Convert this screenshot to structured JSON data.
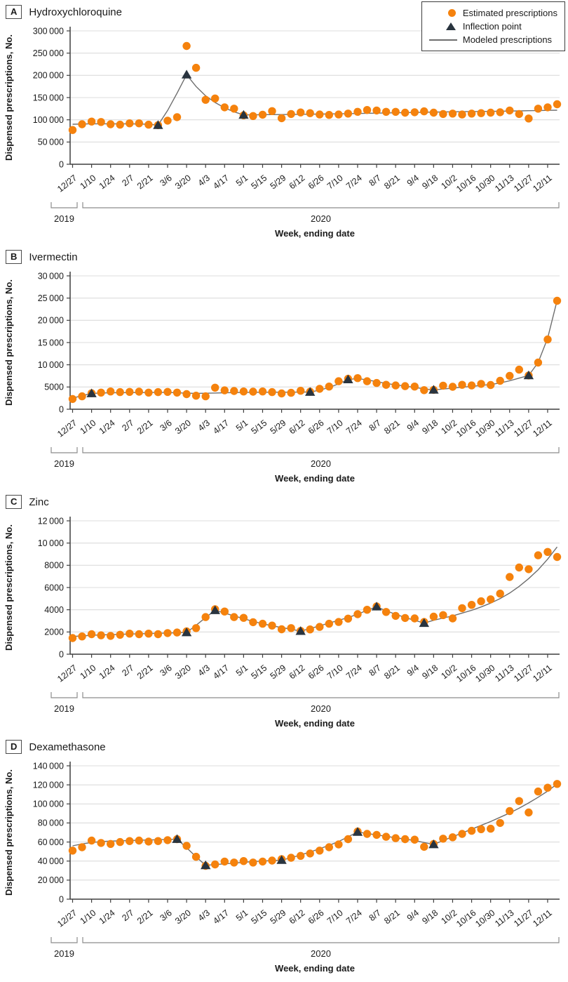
{
  "colors": {
    "estimated": "#F5820D",
    "inflection": "#29343f",
    "model_line": "#6e6e6e",
    "gridline": "#dcdcdc",
    "axis": "#3f3f3f",
    "bracket": "#8c8c8c",
    "text": "#1a1a1a"
  },
  "legend": {
    "items": [
      {
        "label": "Estimated prescriptions",
        "marker": "circle-icon"
      },
      {
        "label": "Inflection point",
        "marker": "triangle-icon"
      },
      {
        "label": "Modeled prescriptions",
        "marker": "line-icon"
      }
    ]
  },
  "year_labels": [
    "2019",
    "2020"
  ],
  "chart_data": [
    {
      "type": "scatter+line",
      "panel_label": "A",
      "title": "Hydroxychloroquine",
      "ylabel": "Dispensed prescriptions, No.",
      "xlabel": "Week, ending date",
      "ylim": [
        0,
        300000
      ],
      "yticks": [
        0,
        50000,
        100000,
        150000,
        200000,
        250000,
        300000
      ],
      "ytick_labels": [
        "0",
        "50 000",
        "100 000",
        "150 000",
        "200 000",
        "250 000",
        "300 000"
      ],
      "dates": [
        "12/27",
        "1/3",
        "1/10",
        "1/17",
        "1/24",
        "1/31",
        "2/7",
        "2/14",
        "2/21",
        "2/28",
        "3/6",
        "3/13",
        "3/20",
        "3/27",
        "4/3",
        "4/10",
        "4/17",
        "4/24",
        "5/1",
        "5/8",
        "5/15",
        "5/22",
        "5/29",
        "6/5",
        "6/12",
        "6/19",
        "6/26",
        "7/3",
        "7/10",
        "7/17",
        "7/24",
        "7/31",
        "8/7",
        "8/14",
        "8/21",
        "8/28",
        "9/4",
        "9/11",
        "9/18",
        "9/25",
        "10/2",
        "10/9",
        "10/16",
        "10/23",
        "10/30",
        "11/6",
        "11/13",
        "11/20",
        "11/27",
        "12/4",
        "12/11",
        "12/18"
      ],
      "xtick_labels": [
        "12/27",
        "1/10",
        "1/24",
        "2/7",
        "2/21",
        "3/6",
        "3/20",
        "4/3",
        "4/17",
        "5/1",
        "5/15",
        "5/29",
        "6/12",
        "6/26",
        "7/10",
        "7/24",
        "8/7",
        "8/21",
        "9/4",
        "9/18",
        "10/2",
        "10/16",
        "10/30",
        "11/13",
        "11/27",
        "12/11"
      ],
      "estimated": [
        77000,
        90000,
        96000,
        95000,
        90000,
        89000,
        92000,
        92000,
        89000,
        88000,
        98000,
        106000,
        266000,
        217000,
        145000,
        148000,
        128000,
        125000,
        110000,
        108500,
        111500,
        119500,
        103500,
        113000,
        116500,
        115000,
        112000,
        111000,
        112000,
        114000,
        118000,
        122000,
        121000,
        118000,
        118000,
        116000,
        117000,
        119000,
        116000,
        113000,
        114000,
        112000,
        114000,
        115000,
        116000,
        117000,
        121000,
        113000,
        103000,
        125000,
        128000,
        135000
      ],
      "model": [
        90000,
        90500,
        91000,
        91000,
        91000,
        91000,
        91000,
        90500,
        90000,
        88000,
        121000,
        160000,
        201500,
        175000,
        154000,
        139000,
        127000,
        118000,
        111000,
        111200,
        111400,
        111600,
        111800,
        112000,
        112300,
        112600,
        112900,
        113200,
        113500,
        113800,
        114200,
        114600,
        115000,
        115400,
        115800,
        116200,
        116600,
        117000,
        117300,
        117600,
        117900,
        118200,
        118500,
        118800,
        119100,
        119400,
        119700,
        120000,
        120400,
        120800,
        121200,
        121600
      ],
      "inflections": [
        {
          "date": "2/28",
          "value": 88000
        },
        {
          "date": "3/20",
          "value": 201500
        },
        {
          "date": "5/1",
          "value": 111000
        }
      ]
    },
    {
      "type": "scatter+line",
      "panel_label": "B",
      "title": "Ivermectin",
      "ylabel": "Dispensed prescriptions, No.",
      "xlabel": "Week, ending date",
      "ylim": [
        0,
        30000
      ],
      "yticks": [
        0,
        5000,
        10000,
        15000,
        20000,
        25000,
        30000
      ],
      "ytick_labels": [
        "0",
        "5000",
        "10 000",
        "15 000",
        "20 000",
        "25 000",
        "30 000"
      ],
      "dates": [
        "12/27",
        "1/3",
        "1/10",
        "1/17",
        "1/24",
        "1/31",
        "2/7",
        "2/14",
        "2/21",
        "2/28",
        "3/6",
        "3/13",
        "3/20",
        "3/27",
        "4/3",
        "4/10",
        "4/17",
        "4/24",
        "5/1",
        "5/8",
        "5/15",
        "5/22",
        "5/29",
        "6/5",
        "6/12",
        "6/19",
        "6/26",
        "7/3",
        "7/10",
        "7/17",
        "7/24",
        "7/31",
        "8/7",
        "8/14",
        "8/21",
        "8/28",
        "9/4",
        "9/11",
        "9/18",
        "9/25",
        "10/2",
        "10/9",
        "10/16",
        "10/23",
        "10/30",
        "11/6",
        "11/13",
        "11/20",
        "11/27",
        "12/4",
        "12/11",
        "12/18"
      ],
      "xtick_labels": [
        "12/27",
        "1/10",
        "1/24",
        "2/7",
        "2/21",
        "3/6",
        "3/20",
        "4/3",
        "4/17",
        "5/1",
        "5/15",
        "5/29",
        "6/12",
        "6/26",
        "7/10",
        "7/24",
        "8/7",
        "8/21",
        "9/4",
        "9/18",
        "10/2",
        "10/16",
        "10/30",
        "11/13",
        "11/27",
        "12/11"
      ],
      "estimated": [
        2300,
        2900,
        3600,
        3750,
        4000,
        3850,
        3900,
        3950,
        3750,
        3850,
        3900,
        3750,
        3400,
        3050,
        2900,
        4850,
        4250,
        4100,
        4000,
        3950,
        4000,
        3850,
        3550,
        3700,
        4150,
        3950,
        4600,
        5100,
        6300,
        6850,
        7000,
        6300,
        5900,
        5500,
        5350,
        5200,
        5100,
        4300,
        4350,
        5300,
        5050,
        5500,
        5350,
        5700,
        5450,
        6400,
        7500,
        8900,
        7600,
        10500,
        15700,
        24400
      ],
      "model": [
        2500,
        3050,
        3550,
        3650,
        3700,
        3720,
        3740,
        3750,
        3760,
        3770,
        3780,
        3700,
        3620,
        3560,
        3600,
        3650,
        3700,
        3750,
        3780,
        3800,
        3810,
        3820,
        3830,
        3840,
        3850,
        3870,
        4300,
        4900,
        5700,
        6700,
        6900,
        6600,
        6200,
        5800,
        5500,
        5200,
        4900,
        4600,
        4350,
        4550,
        4750,
        4950,
        5150,
        5350,
        5550,
        5900,
        6400,
        7000,
        7600,
        10500,
        16000,
        24500
      ],
      "inflections": [
        {
          "date": "1/10",
          "value": 3550
        },
        {
          "date": "6/19",
          "value": 3870
        },
        {
          "date": "7/17",
          "value": 6700
        },
        {
          "date": "9/18",
          "value": 4350
        },
        {
          "date": "11/27",
          "value": 7600
        }
      ]
    },
    {
      "type": "scatter+line",
      "panel_label": "C",
      "title": "Zinc",
      "ylabel": "Dispensed prescriptions, No.",
      "xlabel": "Week, ending date",
      "ylim": [
        0,
        12000
      ],
      "yticks": [
        0,
        2000,
        4000,
        6000,
        8000,
        10000,
        12000
      ],
      "ytick_labels": [
        "0",
        "2000",
        "4000",
        "6000",
        "8000",
        "10 000",
        "12 000"
      ],
      "dates": [
        "12/27",
        "1/3",
        "1/10",
        "1/17",
        "1/24",
        "1/31",
        "2/7",
        "2/14",
        "2/21",
        "2/28",
        "3/6",
        "3/13",
        "3/20",
        "3/27",
        "4/3",
        "4/10",
        "4/17",
        "4/24",
        "5/1",
        "5/8",
        "5/15",
        "5/22",
        "5/29",
        "6/5",
        "6/12",
        "6/19",
        "6/26",
        "7/3",
        "7/10",
        "7/17",
        "7/24",
        "7/31",
        "8/7",
        "8/14",
        "8/21",
        "8/28",
        "9/4",
        "9/11",
        "9/18",
        "9/25",
        "10/2",
        "10/9",
        "10/16",
        "10/23",
        "10/30",
        "11/6",
        "11/13",
        "11/20",
        "11/27",
        "12/4",
        "12/11",
        "12/18"
      ],
      "xtick_labels": [
        "12/27",
        "1/10",
        "1/24",
        "2/7",
        "2/21",
        "3/6",
        "3/20",
        "4/3",
        "4/17",
        "5/1",
        "5/15",
        "5/29",
        "6/12",
        "6/26",
        "7/10",
        "7/24",
        "8/7",
        "8/21",
        "9/4",
        "9/18",
        "10/2",
        "10/16",
        "10/30",
        "11/13",
        "11/27",
        "12/11"
      ],
      "estimated": [
        1450,
        1600,
        1800,
        1700,
        1650,
        1750,
        1850,
        1800,
        1850,
        1800,
        1900,
        1950,
        2050,
        2350,
        3340,
        4050,
        3840,
        3340,
        3270,
        2880,
        2740,
        2580,
        2240,
        2350,
        2100,
        2230,
        2460,
        2740,
        2900,
        3200,
        3600,
        4000,
        4300,
        3800,
        3450,
        3260,
        3220,
        2900,
        3380,
        3520,
        3220,
        4140,
        4440,
        4760,
        4940,
        5450,
        6950,
        7800,
        7650,
        8900,
        9200,
        8750
      ],
      "model": [
        1600,
        1650,
        1700,
        1730,
        1760,
        1790,
        1820,
        1840,
        1860,
        1880,
        1900,
        1930,
        1960,
        2600,
        3300,
        3950,
        3700,
        3450,
        3200,
        2950,
        2750,
        2550,
        2400,
        2250,
        2080,
        2300,
        2550,
        2800,
        3050,
        3300,
        3600,
        3950,
        4280,
        3900,
        3600,
        3300,
        3050,
        2800,
        3050,
        3250,
        3450,
        3700,
        3950,
        4250,
        4600,
        5000,
        5500,
        6100,
        6800,
        7600,
        8550,
        9650
      ],
      "inflections": [
        {
          "date": "3/20",
          "value": 1960
        },
        {
          "date": "4/10",
          "value": 3950
        },
        {
          "date": "6/12",
          "value": 2080
        },
        {
          "date": "8/7",
          "value": 4280
        },
        {
          "date": "9/11",
          "value": 2800
        }
      ]
    },
    {
      "type": "scatter+line",
      "panel_label": "D",
      "title": "Dexamethasone",
      "ylabel": "Dispensed prescriptions, No.",
      "xlabel": "Week, ending date",
      "ylim": [
        0,
        140000
      ],
      "yticks": [
        0,
        20000,
        40000,
        60000,
        80000,
        100000,
        120000,
        140000
      ],
      "ytick_labels": [
        "0",
        "20 000",
        "40 000",
        "60 000",
        "80 000",
        "100 000",
        "120 000",
        "140 000"
      ],
      "dates": [
        "12/27",
        "1/3",
        "1/10",
        "1/17",
        "1/24",
        "1/31",
        "2/7",
        "2/14",
        "2/21",
        "2/28",
        "3/6",
        "3/13",
        "3/20",
        "3/27",
        "4/3",
        "4/10",
        "4/17",
        "4/24",
        "5/1",
        "5/8",
        "5/15",
        "5/22",
        "5/29",
        "6/5",
        "6/12",
        "6/19",
        "6/26",
        "7/3",
        "7/10",
        "7/17",
        "7/24",
        "7/31",
        "8/7",
        "8/14",
        "8/21",
        "8/28",
        "9/4",
        "9/11",
        "9/18",
        "9/25",
        "10/2",
        "10/9",
        "10/16",
        "10/23",
        "10/30",
        "11/6",
        "11/13",
        "11/20",
        "11/27",
        "12/4",
        "12/11",
        "12/18"
      ],
      "xtick_labels": [
        "12/27",
        "1/10",
        "1/24",
        "2/7",
        "2/21",
        "3/6",
        "3/20",
        "4/3",
        "4/17",
        "5/1",
        "5/15",
        "5/29",
        "6/12",
        "6/26",
        "7/10",
        "7/24",
        "8/7",
        "8/21",
        "9/4",
        "9/18",
        "10/2",
        "10/16",
        "10/30",
        "11/13",
        "11/27",
        "12/11"
      ],
      "estimated": [
        51000,
        54500,
        61500,
        59000,
        58000,
        60000,
        61000,
        61500,
        60500,
        61000,
        62000,
        63000,
        56000,
        44500,
        35000,
        36500,
        39500,
        38500,
        40000,
        38500,
        39500,
        40500,
        42000,
        43500,
        45500,
        48000,
        51000,
        54500,
        57500,
        63000,
        71000,
        68500,
        67500,
        65500,
        64000,
        63000,
        62500,
        55000,
        58000,
        63500,
        65000,
        68500,
        71800,
        73500,
        74000,
        80000,
        92500,
        103000,
        91000,
        113000,
        117000,
        121000
      ],
      "model": [
        56000,
        58000,
        59500,
        60500,
        61000,
        61300,
        61600,
        61900,
        62100,
        62400,
        62700,
        63000,
        54000,
        44500,
        35500,
        36300,
        37100,
        37900,
        38700,
        39500,
        40000,
        40500,
        41000,
        43500,
        46500,
        49500,
        53000,
        56500,
        60500,
        65500,
        70500,
        69000,
        67500,
        66000,
        64500,
        63000,
        61500,
        59500,
        57500,
        61500,
        65500,
        69500,
        73500,
        77500,
        81500,
        86000,
        90500,
        95500,
        101000,
        107000,
        113500,
        121000
      ],
      "inflections": [
        {
          "date": "3/13",
          "value": 63000
        },
        {
          "date": "4/3",
          "value": 35500
        },
        {
          "date": "5/29",
          "value": 41000
        },
        {
          "date": "7/24",
          "value": 70500
        },
        {
          "date": "9/18",
          "value": 57500
        }
      ]
    }
  ]
}
